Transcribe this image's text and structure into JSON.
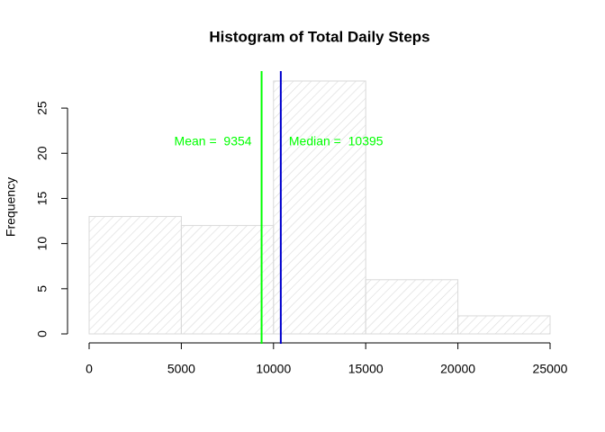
{
  "chart_data": {
    "type": "histogram",
    "title": "Histogram of Total Daily Steps",
    "ylabel": "Frequency",
    "bins": [
      0,
      5000,
      10000,
      15000,
      20000,
      25000
    ],
    "values": [
      13,
      12,
      28,
      6,
      2
    ],
    "color": "#d9d9d9",
    "xlim": [
      0,
      25000
    ],
    "xticks": [
      0,
      5000,
      10000,
      15000,
      20000,
      25000
    ],
    "ylim": [
      0,
      28
    ],
    "yticks": [
      0,
      5,
      10,
      15,
      20,
      25
    ],
    "vlines": [
      {
        "value": 9354,
        "label": "Mean =  9354",
        "color": "#00ff00",
        "side": "left"
      },
      {
        "value": 10395,
        "label": "Median =  10395",
        "color": "#0000cd",
        "side": "right"
      }
    ],
    "annotation_color": "#00ff00"
  }
}
